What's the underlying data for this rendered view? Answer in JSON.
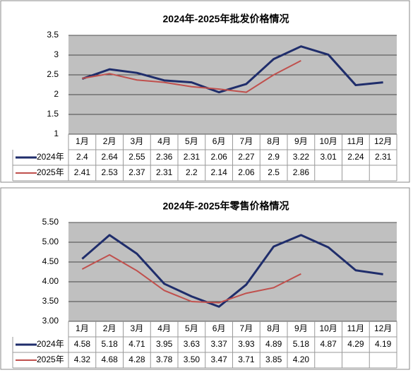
{
  "chart_data": [
    {
      "type": "line",
      "title": "2024年-2025年批发价格情况",
      "categories": [
        "1月",
        "2月",
        "3月",
        "4月",
        "5月",
        "6月",
        "7月",
        "8月",
        "9月",
        "10月",
        "11月",
        "12月"
      ],
      "series": [
        {
          "name": "2024年",
          "color": "#1f2d6b",
          "values": [
            2.4,
            2.64,
            2.55,
            2.36,
            2.31,
            2.06,
            2.27,
            2.9,
            3.22,
            3.01,
            2.24,
            2.31
          ]
        },
        {
          "name": "2025年",
          "color": "#c0504d",
          "values": [
            2.41,
            2.53,
            2.37,
            2.31,
            2.2,
            2.14,
            2.06,
            2.5,
            2.86,
            null,
            null,
            null
          ]
        }
      ],
      "ylim": [
        1,
        3.5
      ],
      "yticks": [
        1,
        1.5,
        2,
        2.5,
        3,
        3.5
      ],
      "grid": true
    },
    {
      "type": "line",
      "title": "2024年-2025年零售价格情况",
      "categories": [
        "1月",
        "2月",
        "3月",
        "4月",
        "5月",
        "6月",
        "7月",
        "8月",
        "9月",
        "10月",
        "11月",
        "12月"
      ],
      "series": [
        {
          "name": "2024年",
          "color": "#1f2d6b",
          "values": [
            4.58,
            5.18,
            4.71,
            3.95,
            3.63,
            3.37,
            3.93,
            4.89,
            5.18,
            4.87,
            4.29,
            4.19
          ],
          "value_labels": [
            "4.58",
            "5.18",
            "4.71",
            "3.95",
            "3.63",
            "3.37",
            "3.93",
            "4.89",
            "5.18",
            "4.87",
            "4.29",
            "4.19"
          ]
        },
        {
          "name": "2025年",
          "color": "#c0504d",
          "values": [
            4.32,
            4.68,
            4.28,
            3.78,
            3.5,
            3.47,
            3.71,
            3.85,
            4.2,
            null,
            null,
            null
          ],
          "value_labels": [
            "4.32",
            "4.68",
            "4.28",
            "3.78",
            "3.50",
            "3.47",
            "3.71",
            "3.85",
            "4.20",
            null,
            null,
            null
          ]
        }
      ],
      "ylim": [
        3,
        5.5
      ],
      "yticks": [
        {
          "value": 3,
          "label": "3.00"
        },
        {
          "value": 3.5,
          "label": "3.50"
        },
        {
          "value": 4,
          "label": "4.00"
        },
        {
          "value": 4.5,
          "label": "4.50"
        },
        {
          "value": 5,
          "label": "5.00"
        },
        {
          "value": 5.5,
          "label": "5.50"
        }
      ],
      "grid": true
    }
  ]
}
